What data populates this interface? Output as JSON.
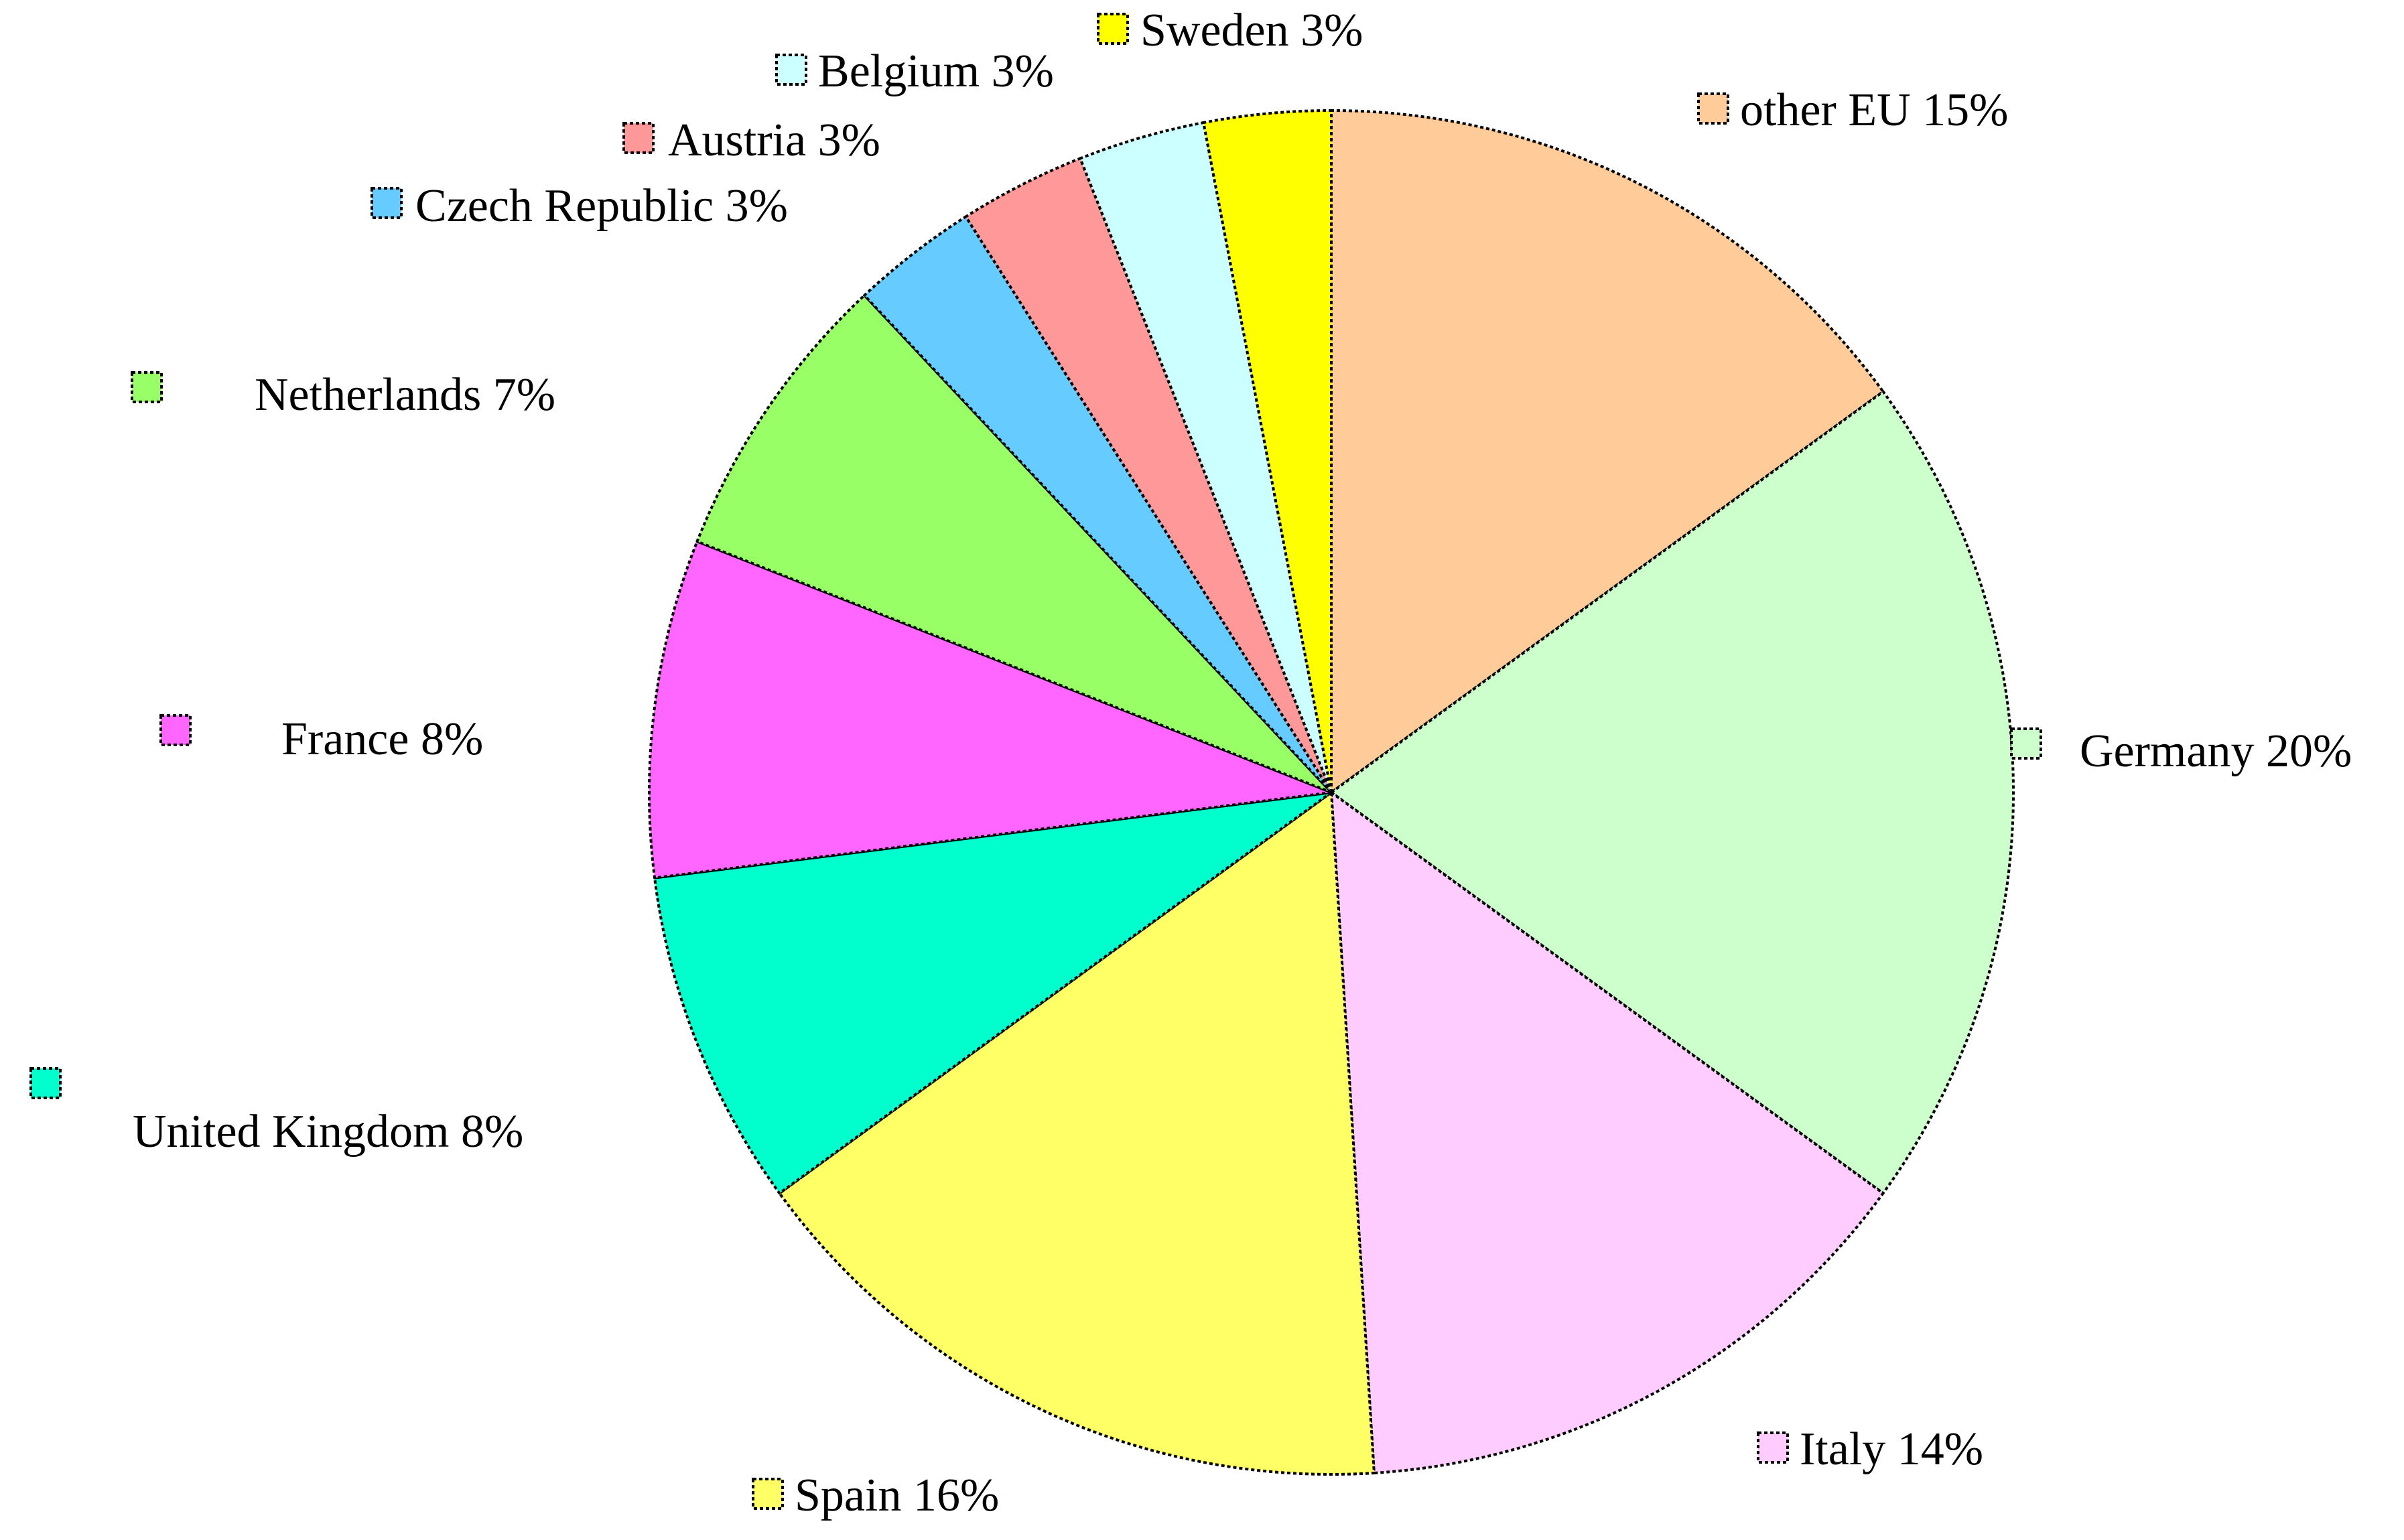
{
  "chart_data": {
    "type": "pie",
    "title": "",
    "start_angle_deg": 90,
    "direction": "clockwise",
    "slices": [
      {
        "name": "other EU",
        "value": 15,
        "label": "other EU 15%",
        "color": "#FFCC99"
      },
      {
        "name": "Germany",
        "value": 20,
        "label": "Germany 20%",
        "color": "#CCFFCC"
      },
      {
        "name": "Italy",
        "value": 14,
        "label": "Italy 14%",
        "color": "#FFCCFF"
      },
      {
        "name": "Spain",
        "value": 16,
        "label": "Spain 16%",
        "color": "#FFFF66"
      },
      {
        "name": "United Kingdom",
        "value": 8,
        "label": "United Kingdom 8%",
        "color": "#00FFCC"
      },
      {
        "name": "France",
        "value": 8,
        "label": "France 8%",
        "color": "#FF66FF"
      },
      {
        "name": "Netherlands",
        "value": 7,
        "label": "Netherlands 7%",
        "color": "#99FF66"
      },
      {
        "name": "Czech Republic",
        "value": 3,
        "label": "Czech Republic 3%",
        "color": "#66CCFF"
      },
      {
        "name": "Austria",
        "value": 3,
        "label": "Austria 3%",
        "color": "#FF9999"
      },
      {
        "name": "Belgium",
        "value": 3,
        "label": "Belgium 3%",
        "color": "#CCFFFF"
      },
      {
        "name": "Sweden",
        "value": 3,
        "label": "Sweden 3%",
        "color": "#FFFF00"
      }
    ]
  }
}
